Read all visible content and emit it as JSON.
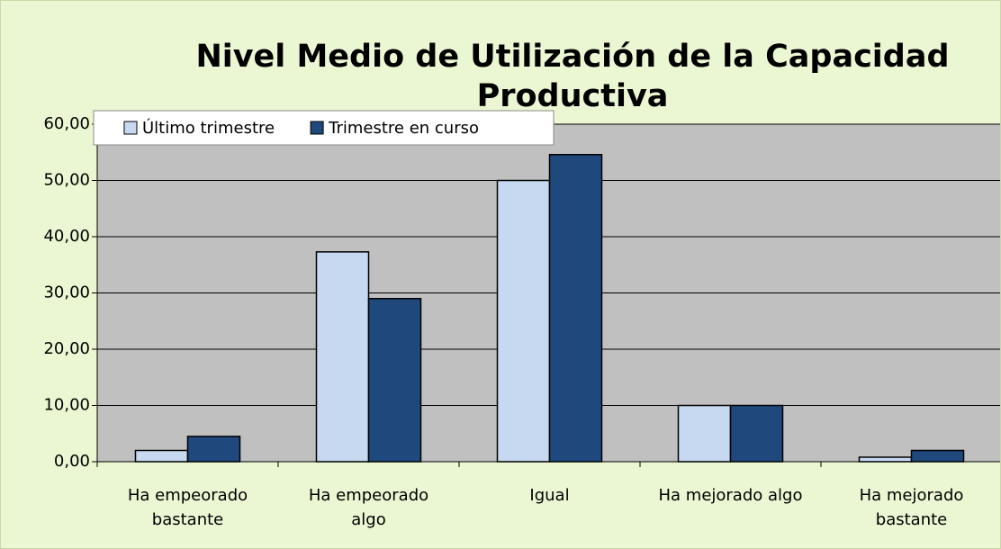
{
  "chart_data": {
    "type": "bar",
    "title": "Nivel Medio de Utilización de la Capacidad Productiva",
    "categories": [
      "Ha empeorado bastante",
      "Ha empeorado algo",
      "Igual",
      "Ha mejorado algo",
      "Ha mejorado bastante"
    ],
    "series": [
      {
        "name": "Último trimestre",
        "color": "#c6d9f1",
        "values": [
          2,
          37.3,
          50,
          10,
          0.8
        ]
      },
      {
        "name": "Trimestre en curso",
        "color": "#1f497d",
        "values": [
          4.5,
          29,
          54.6,
          10,
          2
        ]
      }
    ],
    "ylim": [
      0,
      60
    ],
    "yticks": [
      {
        "value": 0,
        "label": "0,00"
      },
      {
        "value": 10,
        "label": "10,00"
      },
      {
        "value": 20,
        "label": "20,00"
      },
      {
        "value": 30,
        "label": "30,00"
      },
      {
        "value": 40,
        "label": "40,00"
      },
      {
        "value": 50,
        "label": "50,00"
      },
      {
        "value": 60,
        "label": "60,00"
      }
    ],
    "grid": true,
    "legend": "top-left"
  }
}
